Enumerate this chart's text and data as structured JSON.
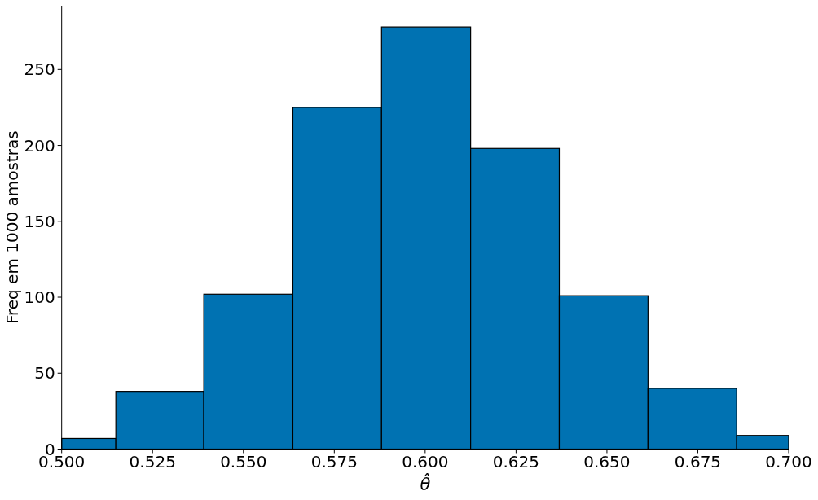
{
  "chart_data": {
    "type": "histogram",
    "xlabel": "θ̂",
    "ylabel": "Freq em 1000 amostras",
    "bins": [
      0.5,
      0.5149,
      0.5391,
      0.5636,
      0.588,
      0.6125,
      0.6369,
      0.6613,
      0.6857,
      0.7
    ],
    "values": [
      7,
      38,
      102,
      225,
      278,
      198,
      101,
      40,
      9
    ],
    "color": "#0072b2",
    "xlim": [
      0.5,
      0.7
    ],
    "xticks": [
      {
        "value": 0.5,
        "label": "0.500"
      },
      {
        "value": 0.525,
        "label": "0.525"
      },
      {
        "value": 0.55,
        "label": "0.550"
      },
      {
        "value": 0.575,
        "label": "0.575"
      },
      {
        "value": 0.6,
        "label": "0.600"
      },
      {
        "value": 0.625,
        "label": "0.625"
      },
      {
        "value": 0.65,
        "label": "0.650"
      },
      {
        "value": 0.675,
        "label": "0.675"
      },
      {
        "value": 0.7,
        "label": "0.700"
      }
    ],
    "ylim": [
      0,
      292
    ],
    "yticks": [
      0,
      50,
      100,
      150,
      200,
      250
    ]
  }
}
